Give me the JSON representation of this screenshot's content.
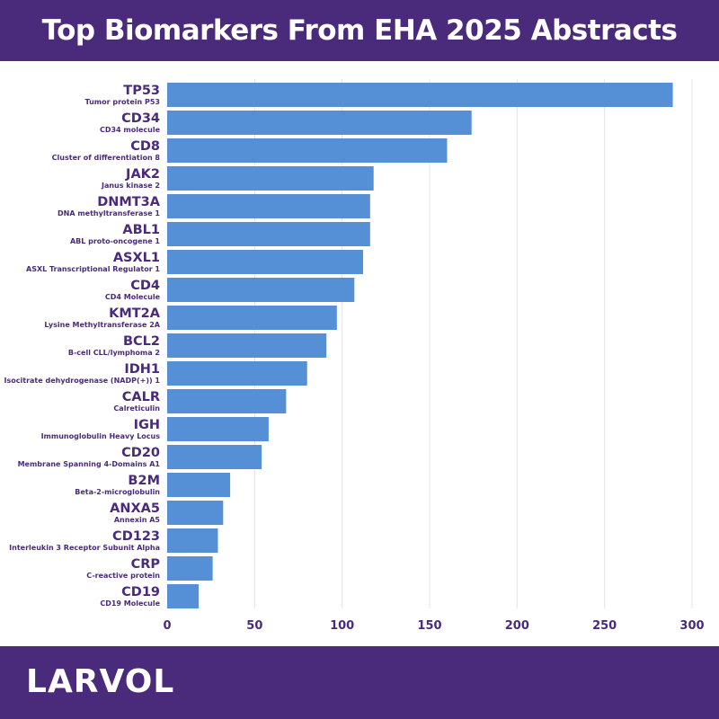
{
  "header": {
    "title": "Top Biomarkers From EHA 2025 Abstracts"
  },
  "footer": {
    "logo_text": "LARVOL"
  },
  "colors": {
    "header_bg": "#4a2a7a",
    "bar": "#5590d6",
    "label": "#4a2a7a"
  },
  "chart_data": {
    "type": "bar",
    "orientation": "horizontal",
    "title": "Top Biomarkers From EHA 2025 Abstracts",
    "xlabel": "",
    "ylabel": "",
    "xlim": [
      0,
      300
    ],
    "ticks": [
      0,
      50,
      100,
      150,
      200,
      250,
      300
    ],
    "grid": true,
    "categories": [
      {
        "name": "TP53",
        "desc": "Tumor protein P53",
        "value": 289
      },
      {
        "name": "CD34",
        "desc": "CD34 molecule",
        "value": 174
      },
      {
        "name": "CD8",
        "desc": "Cluster of differentiation 8",
        "value": 160
      },
      {
        "name": "JAK2",
        "desc": "Janus kinase 2",
        "value": 118
      },
      {
        "name": "DNMT3A",
        "desc": "DNA methyltransferase 1",
        "value": 116
      },
      {
        "name": "ABL1",
        "desc": "ABL proto-oncogene 1",
        "value": 116
      },
      {
        "name": "ASXL1",
        "desc": "ASXL Transcriptional Regulator 1",
        "value": 112
      },
      {
        "name": "CD4",
        "desc": "CD4 Molecule",
        "value": 107
      },
      {
        "name": "KMT2A",
        "desc": "Lysine Methyltransferase 2A",
        "value": 97
      },
      {
        "name": "BCL2",
        "desc": "B-cell CLL/lymphoma 2",
        "value": 91
      },
      {
        "name": "IDH1",
        "desc": "Isocitrate dehydrogenase (NADP(+)) 1",
        "value": 80
      },
      {
        "name": "CALR",
        "desc": "Calreticulin",
        "value": 68
      },
      {
        "name": "IGH",
        "desc": "Immunoglobulin Heavy Locus",
        "value": 58
      },
      {
        "name": "CD20",
        "desc": "Membrane Spanning 4-Domains A1",
        "value": 54
      },
      {
        "name": "B2M",
        "desc": "Beta-2-microglobulin",
        "value": 36
      },
      {
        "name": "ANXA5",
        "desc": "Annexin A5",
        "value": 32
      },
      {
        "name": "CD123",
        "desc": "Interleukin 3 Receptor Subunit Alpha",
        "value": 29
      },
      {
        "name": "CRP",
        "desc": "C-reactive protein",
        "value": 26
      },
      {
        "name": "CD19",
        "desc": "CD19 Molecule",
        "value": 18
      }
    ]
  }
}
